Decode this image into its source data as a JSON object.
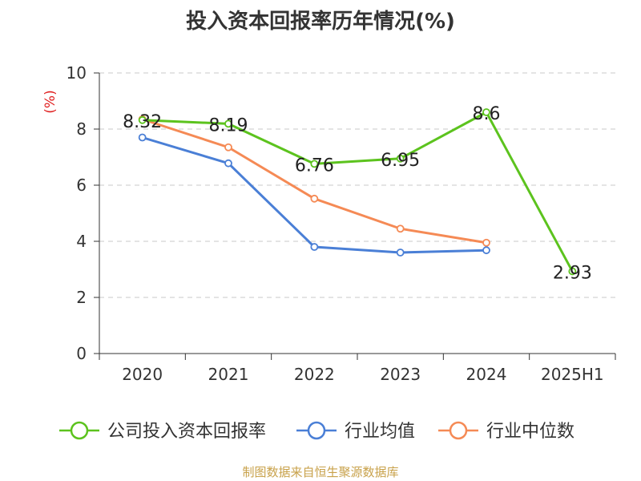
{
  "chart_data": {
    "type": "line",
    "title": "投入资本回报率历年情况(%)",
    "ylabel": "(%)",
    "categories": [
      "2020",
      "2021",
      "2022",
      "2023",
      "2024",
      "2025H1"
    ],
    "ylim": [
      0,
      10
    ],
    "yticks": [
      0,
      2,
      4,
      6,
      8,
      10
    ],
    "grid": true,
    "legend_position": "bottom",
    "series": [
      {
        "name": "公司投入资本回报率",
        "color": "#5cc31e",
        "values": [
          8.32,
          8.19,
          6.76,
          6.95,
          8.6,
          2.93
        ],
        "labels": [
          "8.32",
          "8.19",
          "6.76",
          "6.95",
          "8.6",
          "2.93"
        ]
      },
      {
        "name": "行业均值",
        "color": "#4a7fd6",
        "values": [
          7.7,
          6.78,
          3.8,
          3.6,
          3.68,
          null
        ]
      },
      {
        "name": "行业中位数",
        "color": "#f58a55",
        "values": [
          8.35,
          7.35,
          5.52,
          4.45,
          3.95,
          null
        ]
      }
    ]
  },
  "source_note": "制图数据来自恒生聚源数据库"
}
